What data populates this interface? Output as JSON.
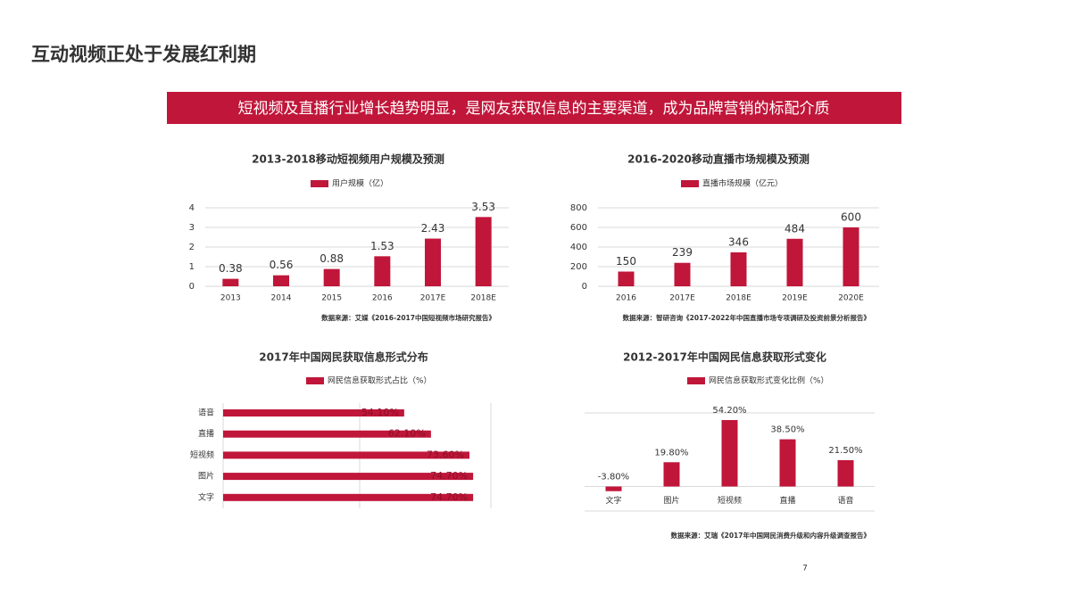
{
  "slide": {
    "title": "互动视频正处于发展红利期",
    "banner": "短视频及直播行业增长趋势明显，是网友获取信息的主要渠道，成为品牌营销的标配介质",
    "page": "7"
  },
  "chart_data": [
    {
      "type": "bar",
      "title": "2013-2018移动短视频用户规模及预测",
      "categories": [
        "2013",
        "2014",
        "2015",
        "2016",
        "2017E",
        "2018E"
      ],
      "series": [
        {
          "name": "用户规模（亿）",
          "color": "#c0163a",
          "values": [
            0.38,
            0.56,
            0.88,
            1.53,
            2.43,
            3.53
          ]
        }
      ],
      "ylim": [
        0,
        4
      ],
      "yticks": [
        0,
        1,
        2,
        3,
        4
      ],
      "grid": true,
      "source": "数据来源：艾媒《2016-2017中国短视频市场研究报告》"
    },
    {
      "type": "bar",
      "title": "2016-2020移动直播市场规模及预测",
      "categories": [
        "2016",
        "2017E",
        "2018E",
        "2019E",
        "2020E"
      ],
      "series": [
        {
          "name": "直播市场规模（亿元）",
          "color": "#c0163a",
          "values": [
            150,
            239,
            346,
            484,
            600
          ]
        }
      ],
      "ylim": [
        0,
        800
      ],
      "yticks": [
        0,
        200,
        400,
        600,
        800
      ],
      "grid": true,
      "source": "数据来源：智研咨询《2017-2022年中国直播市场专项调研及投资前景分析报告》"
    },
    {
      "type": "barh",
      "title": "2017年中国网民获取信息形式分布",
      "categories": [
        "语音",
        "直播",
        "短视频",
        "图片",
        "文字"
      ],
      "series": [
        {
          "name": "网民信息获取形式占比（%）",
          "color": "#c0163a",
          "values": [
            54.1,
            62.1,
            73.6,
            74.7,
            74.7
          ],
          "value_labels": [
            "54.10%",
            "62.10%",
            "73.60%",
            "74.70%",
            "74.70%"
          ]
        }
      ],
      "xlim": [
        0,
        80
      ]
    },
    {
      "type": "bar",
      "title": "2012-2017年中国网民信息获取形式变化",
      "categories": [
        "文字",
        "图片",
        "短视频",
        "直播",
        "语音"
      ],
      "series": [
        {
          "name": "网民信息获取形式变化比例（%）",
          "color": "#c0163a",
          "values": [
            -3.8,
            19.8,
            54.2,
            38.5,
            21.5
          ],
          "value_labels": [
            "-3.80%",
            "19.80%",
            "54.20%",
            "38.50%",
            "21.50%"
          ]
        }
      ],
      "ylim": [
        -20,
        60
      ],
      "source": "数据来源：艾瑞《2017年中国网民消费升级和内容升级调查报告》"
    }
  ]
}
